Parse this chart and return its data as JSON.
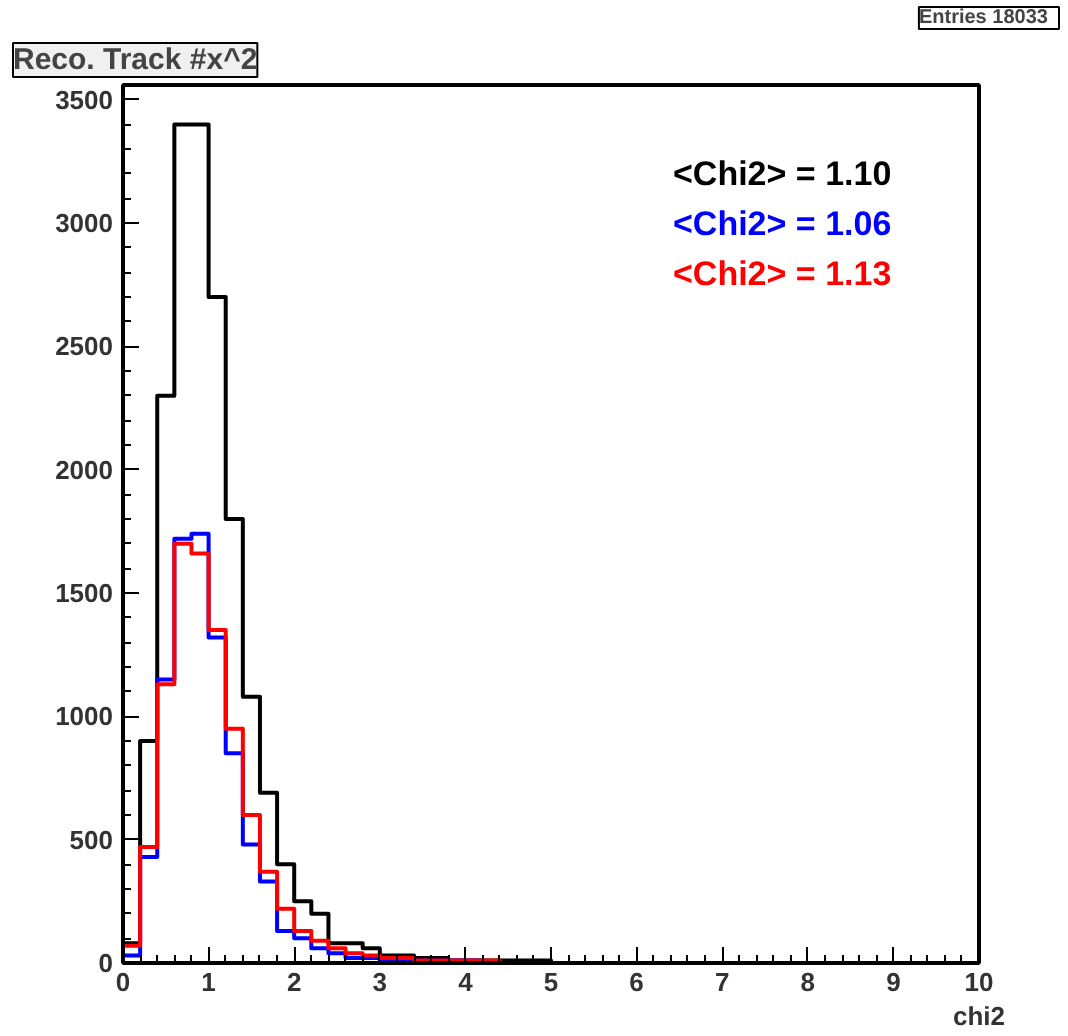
{
  "chart_data": {
    "type": "histogram",
    "title": "Reco. Track #x^2",
    "xlabel": "chi2",
    "annotations": [
      "Entries   18033"
    ],
    "bins": [
      0,
      0.2,
      0.4,
      0.6,
      0.8,
      1.0,
      1.2,
      1.4,
      1.6,
      1.8,
      2.0,
      2.2,
      2.4,
      2.6,
      2.8,
      3.0,
      3.2,
      3.4,
      3.6,
      3.8,
      4.0,
      4.2,
      4.4,
      4.6,
      4.8,
      5.0
    ],
    "series": [
      {
        "name": "<Chi2> =    1.10",
        "color": "#000000",
        "values": [
          80,
          900,
          2300,
          3400,
          3400,
          2700,
          1800,
          1080,
          690,
          400,
          250,
          200,
          80,
          80,
          60,
          30,
          30,
          20,
          20,
          10,
          10,
          10,
          10,
          10,
          10
        ]
      },
      {
        "name": "<Chi2> =    1.06",
        "color": "#0000ff",
        "values": [
          30,
          430,
          1150,
          1720,
          1740,
          1320,
          850,
          480,
          330,
          130,
          100,
          60,
          40,
          20,
          20,
          10,
          10,
          10,
          10,
          10,
          10,
          0,
          0,
          0,
          0
        ]
      },
      {
        "name": "<Chi2> =    1.13",
        "color": "#ff0000",
        "values": [
          70,
          470,
          1130,
          1700,
          1660,
          1350,
          950,
          600,
          370,
          220,
          130,
          90,
          60,
          40,
          30,
          20,
          20,
          10,
          10,
          10,
          10,
          10,
          0,
          0,
          0
        ]
      }
    ],
    "xlim": [
      0,
      10
    ],
    "xticks": [
      0,
      1,
      2,
      3,
      4,
      5,
      6,
      7,
      8,
      9,
      10
    ],
    "ylim": [
      0,
      3560
    ],
    "yticks": [
      0,
      500,
      1000,
      1500,
      2000,
      2500,
      3000,
      3500
    ],
    "grid": false
  }
}
